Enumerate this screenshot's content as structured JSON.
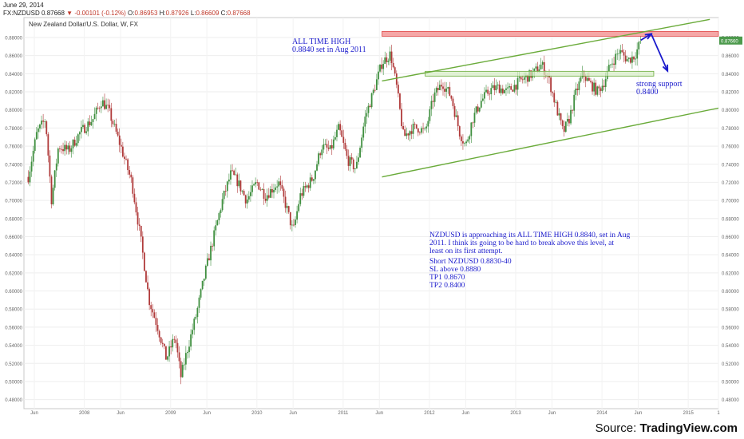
{
  "header": {
    "date": "June 29, 2014",
    "symbol": "FX:NZDUSD",
    "last": "0.87668",
    "change": "-0.00101 (-0.12%)",
    "open_label": "O:",
    "open": "0.86953",
    "high_label": "H:",
    "high": "0.87926",
    "low_label": "L:",
    "low": "0.86609",
    "close_label": "C:",
    "close": "0.87668"
  },
  "source": {
    "prefix": "Source: ",
    "brand": "TradingView.com"
  },
  "colors": {
    "up": "#3f8f3f",
    "down": "#b03a3a",
    "channel": "#6aab3a",
    "resistance_fill": "#f5a6a6",
    "resistance_line": "#e04a4a",
    "support_fill": "#d6ecc4",
    "annotation": "#1a1acc",
    "price_tag": "#4c9a4c"
  },
  "chart_data": {
    "type": "candlestick",
    "title": "New Zealand Dollar/U.S. Dollar, W, FX",
    "ylim": [
      0.47,
      0.902
    ],
    "y_ticks": [
      0.48,
      0.5,
      0.52,
      0.54,
      0.56,
      0.58,
      0.6,
      0.62,
      0.64,
      0.66,
      0.68,
      0.7,
      0.72,
      0.74,
      0.76,
      0.78,
      0.8,
      0.82,
      0.84,
      0.86,
      0.88
    ],
    "x_ticks": [
      "Jun",
      "2008",
      "Jun",
      "2009",
      "Jun",
      "2010",
      "Jun",
      "2011",
      "Jun",
      "2012",
      "Jun",
      "2013",
      "Jun",
      "2014",
      "Jun",
      "2015",
      "1"
    ],
    "x_tick_times": [
      2007.42,
      2008.0,
      2008.42,
      2009.0,
      2009.42,
      2010.0,
      2010.42,
      2011.0,
      2011.42,
      2012.0,
      2012.42,
      2013.0,
      2013.42,
      2014.0,
      2014.42,
      2015.0,
      2015.35
    ],
    "xlim": [
      2007.3,
      2015.35
    ],
    "current_price": "0.87660",
    "price_path": [
      [
        2007.35,
        0.726
      ],
      [
        2007.45,
        0.775
      ],
      [
        2007.55,
        0.79
      ],
      [
        2007.62,
        0.7
      ],
      [
        2007.7,
        0.76
      ],
      [
        2007.82,
        0.755
      ],
      [
        2007.95,
        0.775
      ],
      [
        2008.1,
        0.79
      ],
      [
        2008.2,
        0.81
      ],
      [
        2008.28,
        0.8
      ],
      [
        2008.42,
        0.76
      ],
      [
        2008.55,
        0.72
      ],
      [
        2008.65,
        0.66
      ],
      [
        2008.75,
        0.59
      ],
      [
        2008.85,
        0.56
      ],
      [
        2008.95,
        0.525
      ],
      [
        2009.05,
        0.55
      ],
      [
        2009.12,
        0.505
      ],
      [
        2009.18,
        0.53
      ],
      [
        2009.3,
        0.575
      ],
      [
        2009.4,
        0.62
      ],
      [
        2009.5,
        0.66
      ],
      [
        2009.6,
        0.7
      ],
      [
        2009.7,
        0.73
      ],
      [
        2009.78,
        0.72
      ],
      [
        2009.88,
        0.7
      ],
      [
        2010.0,
        0.72
      ],
      [
        2010.1,
        0.705
      ],
      [
        2010.25,
        0.72
      ],
      [
        2010.35,
        0.69
      ],
      [
        2010.42,
        0.665
      ],
      [
        2010.5,
        0.705
      ],
      [
        2010.65,
        0.725
      ],
      [
        2010.75,
        0.76
      ],
      [
        2010.85,
        0.755
      ],
      [
        2010.95,
        0.78
      ],
      [
        2011.05,
        0.745
      ],
      [
        2011.15,
        0.735
      ],
      [
        2011.25,
        0.79
      ],
      [
        2011.35,
        0.82
      ],
      [
        2011.45,
        0.852
      ],
      [
        2011.55,
        0.862
      ],
      [
        2011.62,
        0.825
      ],
      [
        2011.7,
        0.77
      ],
      [
        2011.8,
        0.78
      ],
      [
        2011.88,
        0.78
      ],
      [
        2011.95,
        0.775
      ],
      [
        2012.05,
        0.815
      ],
      [
        2012.15,
        0.83
      ],
      [
        2012.25,
        0.815
      ],
      [
        2012.35,
        0.775
      ],
      [
        2012.42,
        0.76
      ],
      [
        2012.5,
        0.79
      ],
      [
        2012.6,
        0.81
      ],
      [
        2012.7,
        0.822
      ],
      [
        2012.8,
        0.825
      ],
      [
        2012.9,
        0.82
      ],
      [
        2013.0,
        0.828
      ],
      [
        2013.1,
        0.835
      ],
      [
        2013.2,
        0.84
      ],
      [
        2013.3,
        0.85
      ],
      [
        2013.38,
        0.835
      ],
      [
        2013.45,
        0.81
      ],
      [
        2013.55,
        0.775
      ],
      [
        2013.62,
        0.79
      ],
      [
        2013.7,
        0.82
      ],
      [
        2013.78,
        0.84
      ],
      [
        2013.85,
        0.83
      ],
      [
        2013.95,
        0.82
      ],
      [
        2014.02,
        0.83
      ],
      [
        2014.1,
        0.85
      ],
      [
        2014.2,
        0.865
      ],
      [
        2014.3,
        0.855
      ],
      [
        2014.38,
        0.86
      ],
      [
        2014.45,
        0.876
      ]
    ],
    "resistance": {
      "value": 0.884,
      "label_line1": "ALL TIME HIGH",
      "label_line2": "0.8840 set in Aug 2011",
      "x_from": 2011.45
    },
    "support": {
      "value": 0.84,
      "label_line1": "strong support",
      "label_line2": "0.8400",
      "x_from": 2011.95,
      "x_to": 2014.6
    },
    "channel_upper": [
      [
        2011.45,
        0.832
      ],
      [
        2015.25,
        0.9
      ]
    ],
    "channel_lower": [
      [
        2011.45,
        0.726
      ],
      [
        2015.35,
        0.802
      ]
    ],
    "arrow": [
      [
        2014.45,
        0.877
      ],
      [
        2014.57,
        0.884
      ],
      [
        2014.76,
        0.843
      ]
    ],
    "note": {
      "line1": "NZDUSD is approaching its ALL TIME HIGH 0.8840, set in Aug",
      "line2": "2011. I think its going to be hard to break above this level, at",
      "line3": "least on its first attempt.",
      "line4": "Short NZDUSD 0.8830-40",
      "line5": "SL above 0.8880",
      "line6": "TP1 0.8670",
      "line7": "TP2 0.8400"
    }
  }
}
